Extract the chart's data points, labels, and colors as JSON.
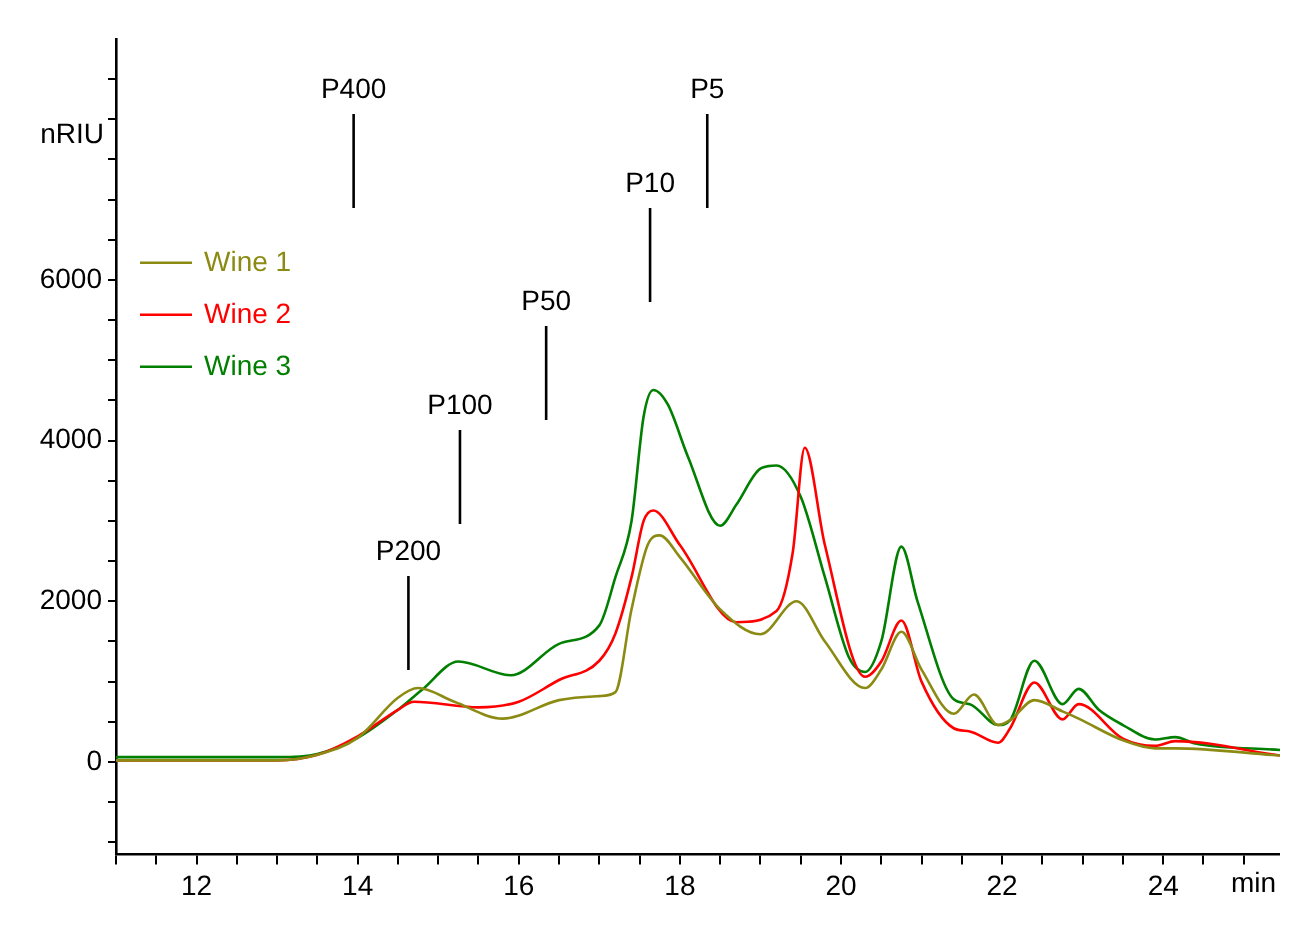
{
  "chart_data": {
    "type": "line",
    "xlabel": "min",
    "ylabel": "nRIU",
    "legend": "top left",
    "grid": false,
    "marker": "none",
    "line_style": "solid",
    "xlim": [
      11,
      25.45
    ],
    "ylim": [
      -1150,
      9000
    ],
    "xticks": [
      {
        "value": 11,
        "label": null
      },
      {
        "value": 11.5,
        "label": null
      },
      12,
      {
        "value": 12.5,
        "label": null
      },
      {
        "value": 13,
        "label": null
      },
      {
        "value": 13.5,
        "label": null
      },
      14,
      {
        "value": 14.5,
        "label": null
      },
      {
        "value": 15,
        "label": null
      },
      {
        "value": 15.5,
        "label": null
      },
      16,
      {
        "value": 16.5,
        "label": null
      },
      {
        "value": 17,
        "label": null
      },
      {
        "value": 17.5,
        "label": null
      },
      18,
      {
        "value": 18.5,
        "label": null
      },
      {
        "value": 19,
        "label": null
      },
      {
        "value": 19.5,
        "label": null
      },
      20,
      {
        "value": 20.5,
        "label": null
      },
      {
        "value": 21,
        "label": null
      },
      {
        "value": 21.5,
        "label": null
      },
      22,
      {
        "value": 22.5,
        "label": null
      },
      {
        "value": 23,
        "label": null
      },
      {
        "value": 23.5,
        "label": null
      },
      24,
      {
        "value": 24.5,
        "label": null
      },
      {
        "value": 25,
        "label": null
      }
    ],
    "yticks": [
      {
        "value": -1000,
        "label": null
      },
      {
        "value": -500,
        "label": null
      },
      0,
      {
        "value": 500,
        "label": null
      },
      {
        "value": 1000,
        "label": null
      },
      {
        "value": 1500,
        "label": null
      },
      2000,
      {
        "value": 2500,
        "label": null
      },
      {
        "value": 3000,
        "label": null
      },
      {
        "value": 3500,
        "label": null
      },
      4000,
      {
        "value": 4500,
        "label": null
      },
      {
        "value": 5000,
        "label": null
      },
      {
        "value": 5500,
        "label": null
      },
      6000,
      {
        "value": 6500,
        "label": null
      },
      {
        "value": 7000,
        "label": null
      },
      {
        "value": 7500,
        "label": null
      },
      {
        "value": 8000,
        "label": null
      },
      {
        "value": 8500,
        "label": null
      }
    ],
    "series": [
      {
        "name": "Wine 1",
        "color": "#8b8b14",
        "x": [
          11,
          13,
          13.5,
          14,
          14.5,
          14.75,
          15.2,
          15.8,
          16.5,
          17,
          17.2,
          17.4,
          17.6,
          17.75,
          18,
          18.5,
          19,
          19.45,
          19.8,
          20.3,
          20.5,
          20.75,
          21,
          21.4,
          21.65,
          21.95,
          22.1,
          22.4,
          22.75,
          22.95,
          23.5,
          23.9,
          24.15,
          25.45
        ],
        "values": [
          20,
          20,
          90,
          300,
          800,
          920,
          750,
          540,
          770,
          820,
          870,
          1900,
          2700,
          2820,
          2550,
          1900,
          1590,
          2000,
          1500,
          920,
          1150,
          1620,
          1150,
          600,
          840,
          460,
          520,
          770,
          630,
          540,
          270,
          170,
          170,
          80
        ]
      },
      {
        "name": "Wine 2",
        "color": "#ff0000",
        "x": [
          11,
          13,
          13.5,
          14,
          14.5,
          14.7,
          15.5,
          16,
          16.5,
          17,
          17.2,
          17.4,
          17.55,
          17.67,
          18,
          18.7,
          19.2,
          19.4,
          19.55,
          19.8,
          20.3,
          20.5,
          20.75,
          21,
          21.4,
          21.6,
          21.95,
          22.1,
          22.4,
          22.75,
          22.95,
          23.5,
          23.9,
          24.15,
          25.45
        ],
        "values": [
          20,
          20,
          90,
          320,
          650,
          750,
          680,
          750,
          1020,
          1260,
          1600,
          2300,
          3000,
          3130,
          2700,
          1740,
          1880,
          2600,
          3910,
          2700,
          1060,
          1250,
          1760,
          1000,
          420,
          380,
          240,
          420,
          990,
          530,
          720,
          290,
          200,
          260,
          80
        ]
      },
      {
        "name": "Wine 3",
        "color": "#007f00",
        "x": [
          11,
          13,
          13.5,
          14,
          14.5,
          14.8,
          15.25,
          15.9,
          16.5,
          17,
          17.2,
          17.4,
          17.55,
          17.67,
          17.85,
          18.1,
          18.5,
          18.7,
          19,
          19.2,
          19.5,
          19.8,
          20.1,
          20.3,
          20.5,
          20.75,
          20.95,
          21.4,
          21.6,
          21.95,
          22.1,
          22.4,
          22.75,
          22.95,
          23.2,
          23.5,
          23.9,
          24.15,
          24.4,
          25.45
        ],
        "values": [
          60,
          60,
          100,
          300,
          650,
          900,
          1250,
          1080,
          1470,
          1700,
          2300,
          3000,
          4300,
          4630,
          4450,
          3800,
          2940,
          3200,
          3650,
          3690,
          3300,
          2300,
          1300,
          1120,
          1500,
          2680,
          2000,
          780,
          720,
          460,
          520,
          1260,
          720,
          910,
          650,
          460,
          280,
          310,
          230,
          150
        ]
      }
    ],
    "ref_lines": [
      {
        "axis": "x",
        "value": 13.95,
        "label": "P400"
      },
      {
        "axis": "x",
        "value": 14.63,
        "label": "P200"
      },
      {
        "axis": "x",
        "value": 15.27,
        "label": "P100"
      },
      {
        "axis": "x",
        "value": 16.34,
        "label": "P50"
      },
      {
        "axis": "x",
        "value": 17.63,
        "label": "P10"
      },
      {
        "axis": "x",
        "value": 18.34,
        "label": "P5"
      }
    ]
  }
}
